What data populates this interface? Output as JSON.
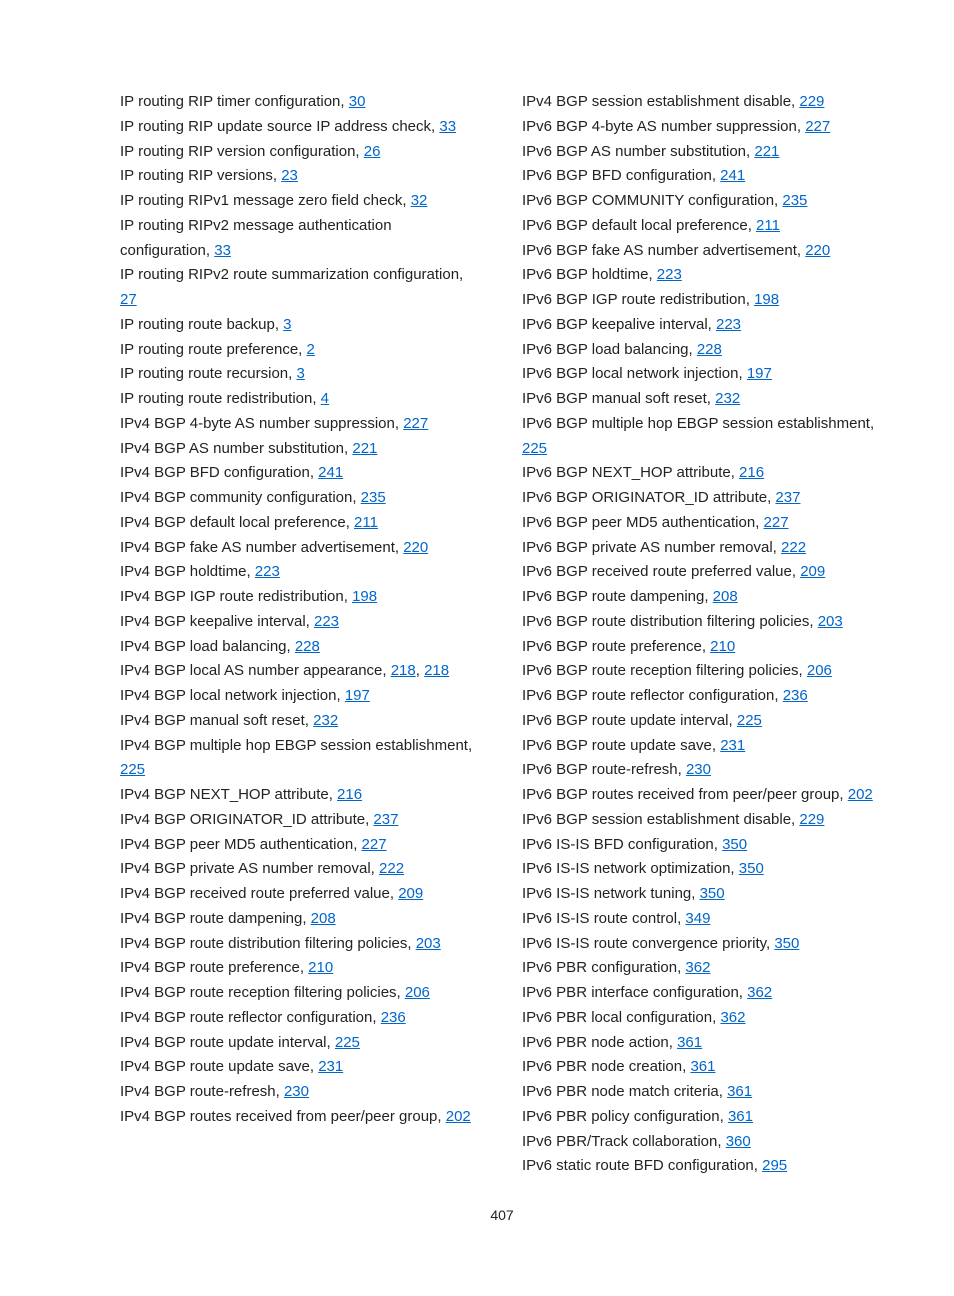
{
  "page_number": "407",
  "link_color": "#0066cc",
  "text_color": "#222222",
  "background_color": "#ffffff",
  "font_size": 15,
  "columns": {
    "left": [
      {
        "text": "IP routing RIP timer configuration, ",
        "links": [
          "30"
        ]
      },
      {
        "text": "IP routing RIP update source IP address check, ",
        "links": [
          "33"
        ]
      },
      {
        "text": "IP routing RIP version configuration, ",
        "links": [
          "26"
        ]
      },
      {
        "text": "IP routing RIP versions, ",
        "links": [
          "23"
        ]
      },
      {
        "text": "IP routing RIPv1 message zero field check, ",
        "links": [
          "32"
        ]
      },
      {
        "text": "IP routing RIPv2 message authentication configuration, ",
        "links": [
          "33"
        ]
      },
      {
        "text": "IP routing RIPv2 route summarization configuration, ",
        "links": [
          "27"
        ]
      },
      {
        "text": "IP routing route backup, ",
        "links": [
          "3"
        ]
      },
      {
        "text": "IP routing route preference, ",
        "links": [
          "2"
        ]
      },
      {
        "text": "IP routing route recursion, ",
        "links": [
          "3"
        ]
      },
      {
        "text": "IP routing route redistribution, ",
        "links": [
          "4"
        ]
      },
      {
        "text": "IPv4 BGP 4-byte AS number suppression, ",
        "links": [
          "227"
        ]
      },
      {
        "text": "IPv4 BGP AS number substitution, ",
        "links": [
          "221"
        ]
      },
      {
        "text": "IPv4 BGP BFD configuration, ",
        "links": [
          "241"
        ]
      },
      {
        "text": "IPv4 BGP community configuration, ",
        "links": [
          "235"
        ]
      },
      {
        "text": "IPv4 BGP default local preference, ",
        "links": [
          "211"
        ]
      },
      {
        "text": "IPv4 BGP fake AS number advertisement, ",
        "links": [
          "220"
        ]
      },
      {
        "text": "IPv4 BGP holdtime, ",
        "links": [
          "223"
        ]
      },
      {
        "text": "IPv4 BGP IGP route redistribution, ",
        "links": [
          "198"
        ]
      },
      {
        "text": "IPv4 BGP keepalive interval, ",
        "links": [
          "223"
        ]
      },
      {
        "text": "IPv4 BGP load balancing, ",
        "links": [
          "228"
        ]
      },
      {
        "text": "IPv4 BGP local AS number appearance, ",
        "links": [
          "218",
          "218"
        ]
      },
      {
        "text": "IPv4 BGP local network injection, ",
        "links": [
          "197"
        ]
      },
      {
        "text": "IPv4 BGP manual soft reset, ",
        "links": [
          "232"
        ]
      },
      {
        "text": "IPv4 BGP multiple hop EBGP session establishment, ",
        "links": [
          "225"
        ]
      },
      {
        "text": "IPv4 BGP NEXT_HOP attribute, ",
        "links": [
          "216"
        ]
      },
      {
        "text": "IPv4 BGP ORIGINATOR_ID attribute, ",
        "links": [
          "237"
        ]
      },
      {
        "text": "IPv4 BGP peer MD5 authentication, ",
        "links": [
          "227"
        ]
      },
      {
        "text": "IPv4 BGP private AS number removal, ",
        "links": [
          "222"
        ]
      },
      {
        "text": "IPv4 BGP received route preferred value, ",
        "links": [
          "209"
        ]
      },
      {
        "text": "IPv4 BGP route dampening, ",
        "links": [
          "208"
        ]
      },
      {
        "text": "IPv4 BGP route distribution filtering policies, ",
        "links": [
          "203"
        ]
      },
      {
        "text": "IPv4 BGP route preference, ",
        "links": [
          "210"
        ]
      },
      {
        "text": "IPv4 BGP route reception filtering policies, ",
        "links": [
          "206"
        ]
      },
      {
        "text": "IPv4 BGP route reflector configuration, ",
        "links": [
          "236"
        ]
      },
      {
        "text": "IPv4 BGP route update interval, ",
        "links": [
          "225"
        ]
      },
      {
        "text": "IPv4 BGP route update save, ",
        "links": [
          "231"
        ]
      },
      {
        "text": "IPv4 BGP route-refresh, ",
        "links": [
          "230"
        ]
      },
      {
        "text": "IPv4 BGP routes received from peer/peer group, ",
        "links": [
          "202"
        ]
      }
    ],
    "right": [
      {
        "text": "IPv4 BGP session establishment disable, ",
        "links": [
          "229"
        ]
      },
      {
        "text": "IPv6 BGP 4-byte AS number suppression, ",
        "links": [
          "227"
        ]
      },
      {
        "text": "IPv6 BGP AS number substitution, ",
        "links": [
          "221"
        ]
      },
      {
        "text": "IPv6 BGP BFD configuration, ",
        "links": [
          "241"
        ]
      },
      {
        "text": "IPv6 BGP COMMUNITY configuration, ",
        "links": [
          "235"
        ]
      },
      {
        "text": "IPv6 BGP default local preference, ",
        "links": [
          "211"
        ]
      },
      {
        "text": "IPv6 BGP fake AS number advertisement, ",
        "links": [
          "220"
        ]
      },
      {
        "text": "IPv6 BGP holdtime, ",
        "links": [
          "223"
        ]
      },
      {
        "text": "IPv6 BGP IGP route redistribution, ",
        "links": [
          "198"
        ]
      },
      {
        "text": "IPv6 BGP keepalive interval, ",
        "links": [
          "223"
        ]
      },
      {
        "text": "IPv6 BGP load balancing, ",
        "links": [
          "228"
        ]
      },
      {
        "text": "IPv6 BGP local network injection, ",
        "links": [
          "197"
        ]
      },
      {
        "text": "IPv6 BGP manual soft reset, ",
        "links": [
          "232"
        ]
      },
      {
        "text": "IPv6 BGP multiple hop EBGP session establishment, ",
        "links": [
          "225"
        ]
      },
      {
        "text": "IPv6 BGP NEXT_HOP attribute, ",
        "links": [
          "216"
        ]
      },
      {
        "text": "IPv6 BGP ORIGINATOR_ID attribute, ",
        "links": [
          "237"
        ]
      },
      {
        "text": "IPv6 BGP peer MD5 authentication, ",
        "links": [
          "227"
        ]
      },
      {
        "text": "IPv6 BGP private AS number removal, ",
        "links": [
          "222"
        ]
      },
      {
        "text": "IPv6 BGP received route preferred value, ",
        "links": [
          "209"
        ]
      },
      {
        "text": "IPv6 BGP route dampening, ",
        "links": [
          "208"
        ]
      },
      {
        "text": "IPv6 BGP route distribution filtering policies, ",
        "links": [
          "203"
        ]
      },
      {
        "text": "IPv6 BGP route preference, ",
        "links": [
          "210"
        ]
      },
      {
        "text": "IPv6 BGP route reception filtering policies, ",
        "links": [
          "206"
        ]
      },
      {
        "text": "IPv6 BGP route reflector configuration, ",
        "links": [
          "236"
        ]
      },
      {
        "text": "IPv6 BGP route update interval, ",
        "links": [
          "225"
        ]
      },
      {
        "text": "IPv6 BGP route update save, ",
        "links": [
          "231"
        ]
      },
      {
        "text": "IPv6 BGP route-refresh, ",
        "links": [
          "230"
        ]
      },
      {
        "text": "IPv6 BGP routes received from peer/peer group, ",
        "links": [
          "202"
        ]
      },
      {
        "text": "IPv6 BGP session establishment disable, ",
        "links": [
          "229"
        ]
      },
      {
        "text": "IPv6 IS-IS BFD configuration, ",
        "links": [
          "350"
        ]
      },
      {
        "text": "IPv6 IS-IS network optimization, ",
        "links": [
          "350"
        ]
      },
      {
        "text": "IPv6 IS-IS network tuning, ",
        "links": [
          "350"
        ]
      },
      {
        "text": "IPv6 IS-IS route control, ",
        "links": [
          "349"
        ]
      },
      {
        "text": "IPv6 IS-IS route convergence priority, ",
        "links": [
          "350"
        ]
      },
      {
        "text": "IPv6 PBR configuration, ",
        "links": [
          "362"
        ]
      },
      {
        "text": "IPv6 PBR interface configuration, ",
        "links": [
          "362"
        ]
      },
      {
        "text": "IPv6 PBR local configuration, ",
        "links": [
          "362"
        ]
      },
      {
        "text": "IPv6 PBR node action, ",
        "links": [
          "361"
        ]
      },
      {
        "text": "IPv6 PBR node creation, ",
        "links": [
          "361"
        ]
      },
      {
        "text": "IPv6 PBR node match criteria, ",
        "links": [
          "361"
        ]
      },
      {
        "text": "IPv6 PBR policy configuration, ",
        "links": [
          "361"
        ]
      },
      {
        "text": "IPv6 PBR/Track collaboration, ",
        "links": [
          "360"
        ]
      },
      {
        "text": "IPv6 static route BFD configuration, ",
        "links": [
          "295"
        ]
      }
    ]
  }
}
